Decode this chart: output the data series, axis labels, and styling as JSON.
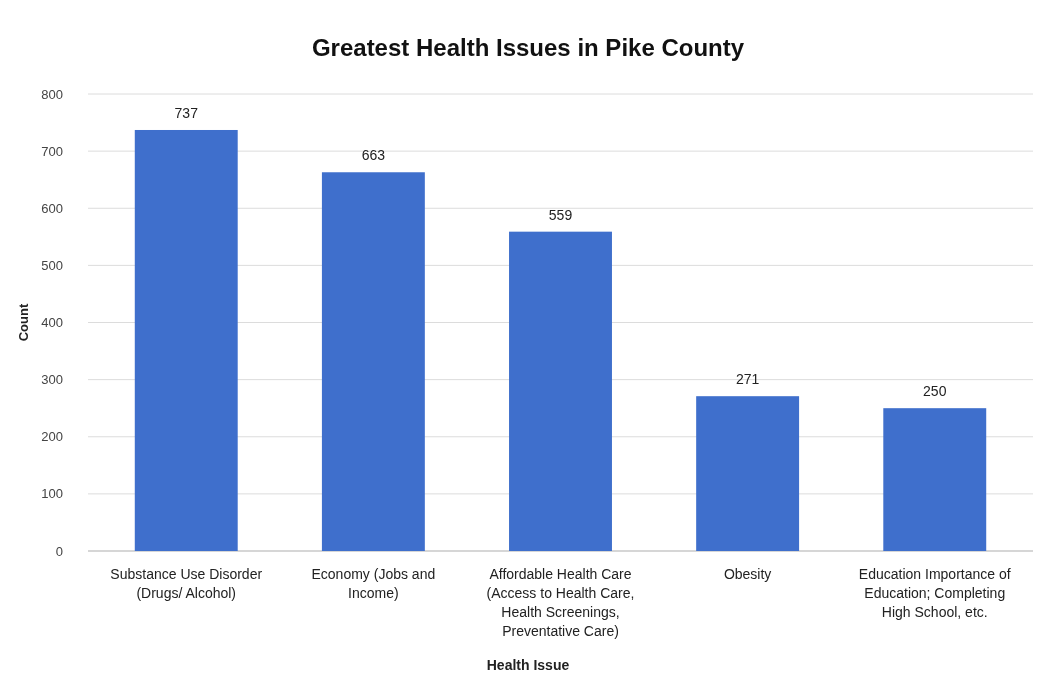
{
  "chart_data": {
    "type": "bar",
    "title": "Greatest Health Issues in Pike County",
    "xlabel": "Health Issue",
    "ylabel": "Count",
    "categories": [
      "Substance Use Disorder (Drugs/ Alcohol)",
      "Economy (Jobs and Income)",
      "Affordable Health Care (Access to Health Care, Health Screenings, Preventative Care)",
      "Obesity",
      "Education Importance of Education; Completing High School, etc."
    ],
    "values": [
      737,
      663,
      559,
      271,
      250
    ],
    "color": "#3f6fcc",
    "ylim": [
      0,
      800
    ],
    "yticks": [
      0,
      100,
      200,
      300,
      400,
      500,
      600,
      700,
      800
    ],
    "grid": "y",
    "data_labels": true
  }
}
